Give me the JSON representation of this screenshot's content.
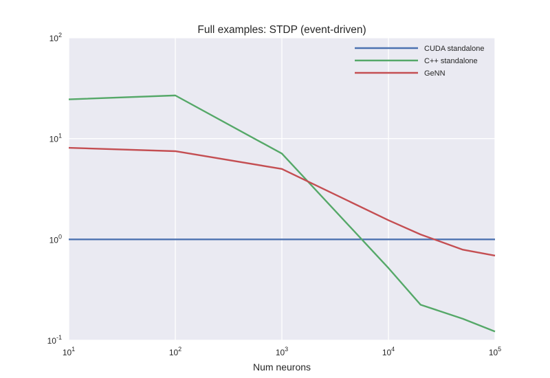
{
  "chart_data": {
    "type": "line",
    "title": "Full examples: STDP (event-driven)",
    "xlabel": "Num neurons",
    "ylabel": "",
    "xscale": "log",
    "yscale": "log",
    "xlim": [
      10,
      100000
    ],
    "ylim": [
      0.1,
      100
    ],
    "grid": true,
    "legend_position": "top-right",
    "x_ticks": [
      {
        "value": 10,
        "base": "10",
        "exp": "1"
      },
      {
        "value": 100,
        "base": "10",
        "exp": "2"
      },
      {
        "value": 1000,
        "base": "10",
        "exp": "3"
      },
      {
        "value": 10000,
        "base": "10",
        "exp": "4"
      },
      {
        "value": 100000,
        "base": "10",
        "exp": "5"
      }
    ],
    "y_ticks": [
      {
        "value": 0.1,
        "base": "10",
        "exp": "-1"
      },
      {
        "value": 1,
        "base": "10",
        "exp": "0"
      },
      {
        "value": 10,
        "base": "10",
        "exp": "1"
      },
      {
        "value": 100,
        "base": "10",
        "exp": "2"
      }
    ],
    "series": [
      {
        "name": "CUDA standalone",
        "color": "#4c72b0",
        "x": [
          10,
          100,
          1000,
          10000,
          20000,
          50000,
          100000
        ],
        "y": [
          1,
          1,
          1,
          1,
          1,
          1,
          1
        ]
      },
      {
        "name": "C++ standalone",
        "color": "#55a868",
        "x": [
          10,
          100,
          1000,
          10000,
          20000,
          50000,
          100000
        ],
        "y": [
          24.5,
          26.8,
          7.1,
          0.52,
          0.225,
          0.163,
          0.122
        ]
      },
      {
        "name": "GeNN",
        "color": "#c44e52",
        "x": [
          10,
          100,
          1000,
          10000,
          20000,
          50000,
          100000
        ],
        "y": [
          8.1,
          7.5,
          5.0,
          1.55,
          1.12,
          0.79,
          0.69
        ]
      }
    ]
  }
}
